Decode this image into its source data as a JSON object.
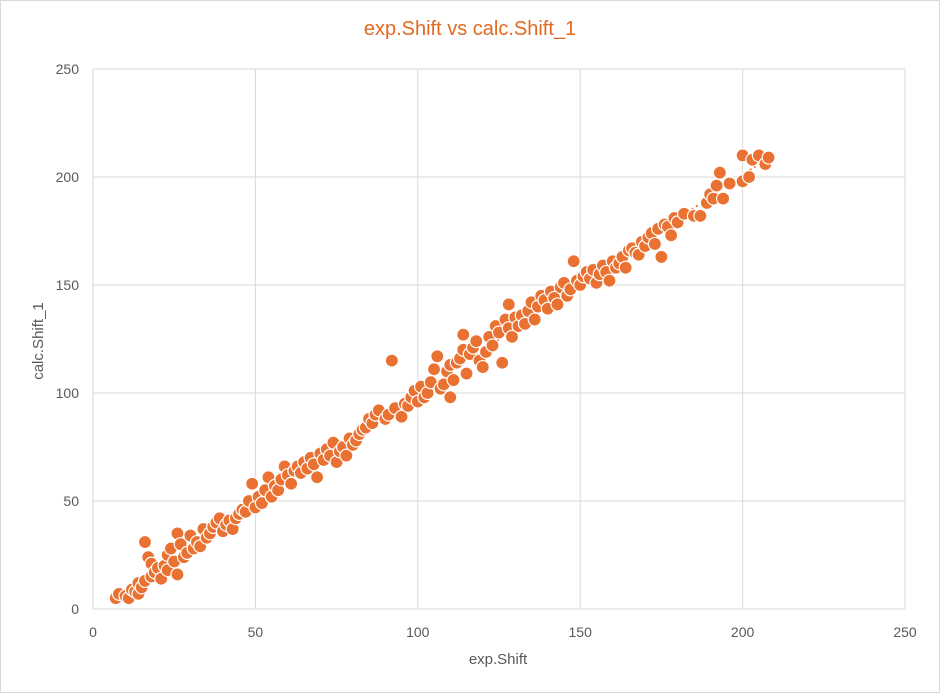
{
  "chart_data": {
    "type": "scatter",
    "title_parts": [
      "exp.Shift",
      "vs",
      "calc.Shift_1"
    ],
    "xlabel": "exp.Shift",
    "ylabel": "calc.Shift_1",
    "xlim": [
      0,
      250
    ],
    "ylim": [
      0,
      250
    ],
    "x_ticks": [
      "0",
      "50",
      "100",
      "150",
      "200",
      "250"
    ],
    "y_ticks": [
      "0",
      "50",
      "100",
      "150",
      "200",
      "250"
    ],
    "grid": true,
    "trendline": {
      "style": "dotted",
      "from": [
        7,
        5
      ],
      "to": [
        208,
        209
      ]
    },
    "color": "#e97132",
    "points": [
      [
        7,
        5
      ],
      [
        8,
        7
      ],
      [
        10,
        6
      ],
      [
        11,
        5
      ],
      [
        12,
        9
      ],
      [
        13,
        8
      ],
      [
        14,
        7
      ],
      [
        14,
        12
      ],
      [
        15,
        10
      ],
      [
        16,
        13
      ],
      [
        16,
        31
      ],
      [
        17,
        24
      ],
      [
        18,
        15
      ],
      [
        18,
        21
      ],
      [
        19,
        17
      ],
      [
        20,
        19
      ],
      [
        21,
        14
      ],
      [
        22,
        20
      ],
      [
        23,
        18
      ],
      [
        23,
        25
      ],
      [
        24,
        28
      ],
      [
        25,
        22
      ],
      [
        26,
        16
      ],
      [
        26,
        35
      ],
      [
        27,
        30
      ],
      [
        28,
        24
      ],
      [
        29,
        26
      ],
      [
        30,
        34
      ],
      [
        31,
        28
      ],
      [
        32,
        31
      ],
      [
        33,
        29
      ],
      [
        34,
        37
      ],
      [
        35,
        33
      ],
      [
        36,
        35
      ],
      [
        37,
        38
      ],
      [
        38,
        40
      ],
      [
        39,
        42
      ],
      [
        40,
        36
      ],
      [
        41,
        39
      ],
      [
        42,
        41
      ],
      [
        43,
        37
      ],
      [
        44,
        42
      ],
      [
        45,
        44
      ],
      [
        46,
        46
      ],
      [
        47,
        45
      ],
      [
        48,
        50
      ],
      [
        49,
        58
      ],
      [
        50,
        47
      ],
      [
        51,
        52
      ],
      [
        52,
        49
      ],
      [
        53,
        55
      ],
      [
        54,
        61
      ],
      [
        55,
        52
      ],
      [
        56,
        57
      ],
      [
        57,
        55
      ],
      [
        58,
        60
      ],
      [
        59,
        66
      ],
      [
        60,
        62
      ],
      [
        61,
        58
      ],
      [
        62,
        64
      ],
      [
        63,
        66
      ],
      [
        64,
        63
      ],
      [
        65,
        68
      ],
      [
        66,
        65
      ],
      [
        67,
        70
      ],
      [
        68,
        67
      ],
      [
        69,
        61
      ],
      [
        70,
        72
      ],
      [
        71,
        69
      ],
      [
        72,
        74
      ],
      [
        73,
        71
      ],
      [
        74,
        77
      ],
      [
        75,
        68
      ],
      [
        76,
        73
      ],
      [
        77,
        75
      ],
      [
        78,
        71
      ],
      [
        79,
        79
      ],
      [
        80,
        76
      ],
      [
        81,
        78
      ],
      [
        82,
        81
      ],
      [
        83,
        83
      ],
      [
        84,
        84
      ],
      [
        85,
        88
      ],
      [
        86,
        86
      ],
      [
        87,
        90
      ],
      [
        88,
        92
      ],
      [
        90,
        88
      ],
      [
        91,
        90
      ],
      [
        92,
        115
      ],
      [
        93,
        93
      ],
      [
        95,
        89
      ],
      [
        96,
        95
      ],
      [
        97,
        94
      ],
      [
        98,
        98
      ],
      [
        99,
        101
      ],
      [
        100,
        96
      ],
      [
        101,
        103
      ],
      [
        102,
        98
      ],
      [
        103,
        100
      ],
      [
        104,
        105
      ],
      [
        105,
        111
      ],
      [
        106,
        117
      ],
      [
        107,
        102
      ],
      [
        108,
        104
      ],
      [
        109,
        110
      ],
      [
        110,
        98
      ],
      [
        110,
        113
      ],
      [
        111,
        106
      ],
      [
        112,
        114
      ],
      [
        113,
        116
      ],
      [
        114,
        120
      ],
      [
        114,
        127
      ],
      [
        115,
        109
      ],
      [
        116,
        118
      ],
      [
        117,
        121
      ],
      [
        118,
        124
      ],
      [
        119,
        115
      ],
      [
        120,
        112
      ],
      [
        121,
        119
      ],
      [
        122,
        126
      ],
      [
        123,
        122
      ],
      [
        124,
        131
      ],
      [
        125,
        128
      ],
      [
        126,
        114
      ],
      [
        127,
        134
      ],
      [
        128,
        130
      ],
      [
        128,
        141
      ],
      [
        129,
        126
      ],
      [
        130,
        135
      ],
      [
        131,
        131
      ],
      [
        132,
        136
      ],
      [
        133,
        132
      ],
      [
        134,
        138
      ],
      [
        135,
        142
      ],
      [
        136,
        134
      ],
      [
        137,
        140
      ],
      [
        138,
        145
      ],
      [
        139,
        143
      ],
      [
        140,
        139
      ],
      [
        141,
        147
      ],
      [
        142,
        144
      ],
      [
        143,
        141
      ],
      [
        144,
        149
      ],
      [
        145,
        151
      ],
      [
        146,
        145
      ],
      [
        147,
        148
      ],
      [
        148,
        161
      ],
      [
        149,
        152
      ],
      [
        150,
        150
      ],
      [
        151,
        154
      ],
      [
        152,
        156
      ],
      [
        153,
        153
      ],
      [
        154,
        157
      ],
      [
        155,
        151
      ],
      [
        156,
        155
      ],
      [
        157,
        159
      ],
      [
        158,
        156
      ],
      [
        159,
        152
      ],
      [
        160,
        161
      ],
      [
        161,
        158
      ],
      [
        162,
        160
      ],
      [
        163,
        163
      ],
      [
        164,
        158
      ],
      [
        165,
        166
      ],
      [
        166,
        167
      ],
      [
        167,
        165
      ],
      [
        168,
        164
      ],
      [
        169,
        170
      ],
      [
        170,
        168
      ],
      [
        171,
        172
      ],
      [
        172,
        174
      ],
      [
        173,
        169
      ],
      [
        174,
        176
      ],
      [
        175,
        163
      ],
      [
        176,
        178
      ],
      [
        177,
        177
      ],
      [
        178,
        173
      ],
      [
        179,
        181
      ],
      [
        180,
        179
      ],
      [
        182,
        183
      ],
      [
        185,
        182
      ],
      [
        187,
        182
      ],
      [
        189,
        188
      ],
      [
        190,
        192
      ],
      [
        191,
        190
      ],
      [
        192,
        196
      ],
      [
        193,
        202
      ],
      [
        194,
        190
      ],
      [
        196,
        197
      ],
      [
        200,
        198
      ],
      [
        200,
        210
      ],
      [
        202,
        200
      ],
      [
        203,
        208
      ],
      [
        205,
        210
      ],
      [
        207,
        206
      ],
      [
        208,
        209
      ]
    ]
  }
}
